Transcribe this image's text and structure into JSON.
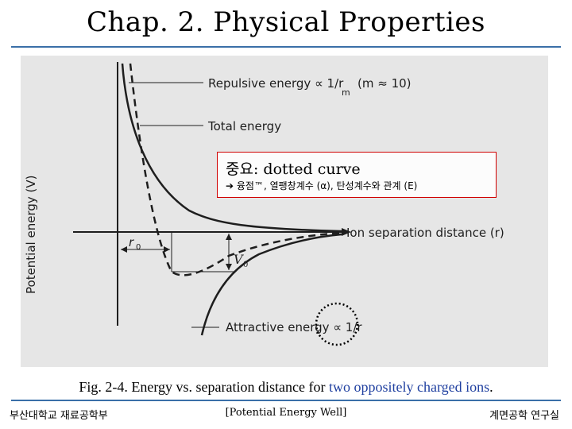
{
  "slide": {
    "title": "Chap. 2. Physical Properties",
    "caption_main": "Fig. 2-4. Energy vs. separation distance for ",
    "caption_highlight": "two oppositely charged ions",
    "caption_end": "."
  },
  "callout": {
    "title": "중요: dotted curve",
    "subtitle": "➔ 융점™, 열팽창계수 (α), 탄성계수와 관계 (E)"
  },
  "figure": {
    "y_axis_label": "Potential energy (V)",
    "repulsive_label": "Repulsive energy ∝ 1/r",
    "repulsive_exp": "m",
    "repulsive_note": "(m ≈ 10)",
    "total_label": "Total energy",
    "x_axis_label": "Ion separation distance (r)",
    "r0_label": "r",
    "r0_sub": "0",
    "v0_label": "V",
    "v0_sub": "0",
    "attractive_label": "Attractive energy ∝ 1/r",
    "colors": {
      "background": "#e6e6e6",
      "ink": "#1e1e1e",
      "callout_border": "#d00000",
      "dotted_circle": "#000000"
    }
  },
  "footer": {
    "left": "부산대학교 재료공학부",
    "center": "[Potential Energy Well]",
    "right": "계면공학 연구실"
  }
}
